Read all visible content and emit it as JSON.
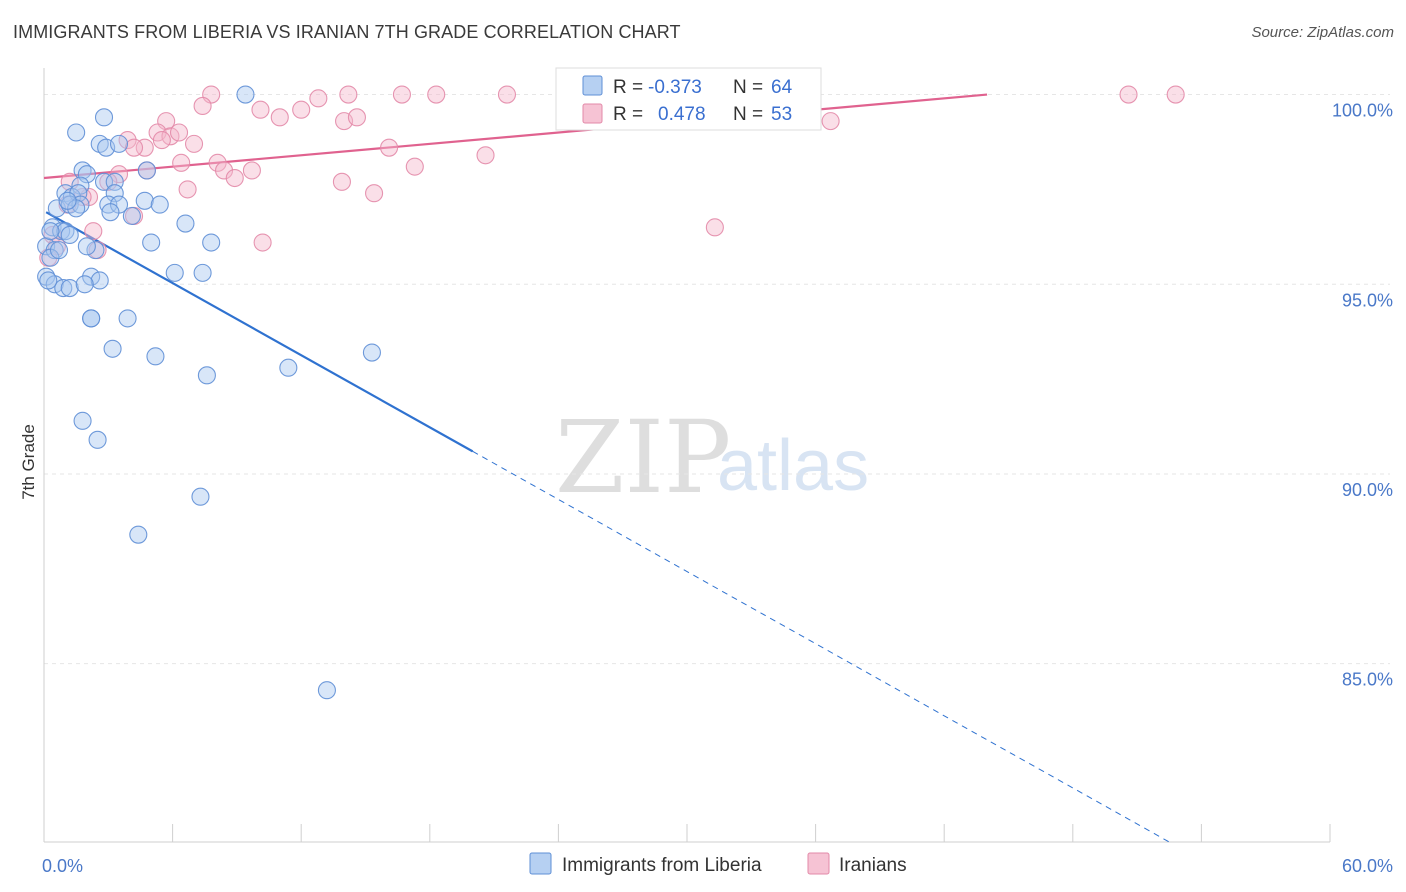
{
  "title": "IMMIGRANTS FROM LIBERIA VS IRANIAN 7TH GRADE CORRELATION CHART",
  "source": "Source: ZipAtlas.com",
  "watermark": {
    "zip": "ZIP",
    "atlas": "atlas"
  },
  "colors": {
    "blue_fill": "#a9c8f0",
    "blue_stroke": "#5f8fd6",
    "blue_line": "#2f72d0",
    "pink_fill": "#f5b9cc",
    "pink_stroke": "#e389a8",
    "pink_line": "#e0628f",
    "grid": "#e6e6e6",
    "tick_text": "#4a78c8"
  },
  "legend": {
    "r_label": "R =",
    "n_label": "N =",
    "series": [
      {
        "r": "-0.373",
        "n": "64"
      },
      {
        "r": "0.478",
        "n": "53"
      }
    ]
  },
  "chart_data": {
    "type": "scatter",
    "xlabel": "",
    "ylabel": "7th Grade",
    "xlim": [
      0,
      60
    ],
    "ylim": [
      80.3,
      100.7
    ],
    "x_tick_labels": [
      {
        "value": 0,
        "label": "0.0%"
      },
      {
        "value": 60,
        "label": "60.0%"
      }
    ],
    "x_minor_ticks": [
      0,
      6,
      12,
      18,
      24,
      30,
      36,
      42,
      48,
      54,
      60
    ],
    "y_ticks": [
      {
        "value": 100,
        "label": "100.0%"
      },
      {
        "value": 95,
        "label": "95.0%"
      },
      {
        "value": 90,
        "label": "90.0%"
      },
      {
        "value": 85,
        "label": "85.0%"
      }
    ],
    "series": [
      {
        "name": "Immigrants from Liberia",
        "r": -0.373,
        "n": 64,
        "trend": {
          "x0": 0.1,
          "y0": 96.9,
          "x_solid_end": 20.0,
          "x1": 52.5,
          "y1": 80.3
        },
        "points": [
          [
            9.4,
            100.0
          ],
          [
            2.8,
            99.4
          ],
          [
            1.5,
            99.0
          ],
          [
            2.6,
            98.7
          ],
          [
            2.9,
            98.6
          ],
          [
            3.5,
            98.7
          ],
          [
            1.8,
            98.0
          ],
          [
            2.0,
            97.9
          ],
          [
            4.8,
            98.0
          ],
          [
            1.7,
            97.6
          ],
          [
            2.8,
            97.7
          ],
          [
            3.3,
            97.7
          ],
          [
            1.0,
            97.4
          ],
          [
            1.3,
            97.3
          ],
          [
            1.6,
            97.4
          ],
          [
            3.3,
            97.4
          ],
          [
            0.6,
            97.0
          ],
          [
            1.2,
            97.1
          ],
          [
            1.7,
            97.1
          ],
          [
            3.0,
            97.1
          ],
          [
            3.5,
            97.1
          ],
          [
            4.7,
            97.2
          ],
          [
            5.4,
            97.1
          ],
          [
            3.1,
            96.9
          ],
          [
            4.1,
            96.8
          ],
          [
            0.4,
            96.5
          ],
          [
            0.8,
            96.4
          ],
          [
            1.0,
            96.4
          ],
          [
            1.2,
            96.3
          ],
          [
            6.6,
            96.6
          ],
          [
            0.1,
            96.0
          ],
          [
            0.5,
            95.9
          ],
          [
            2.4,
            95.9
          ],
          [
            5.0,
            96.1
          ],
          [
            7.8,
            96.1
          ],
          [
            0.3,
            95.7
          ],
          [
            0.1,
            95.2
          ],
          [
            0.5,
            95.0
          ],
          [
            0.9,
            94.9
          ],
          [
            1.2,
            94.9
          ],
          [
            2.2,
            95.2
          ],
          [
            2.6,
            95.1
          ],
          [
            1.9,
            95.0
          ],
          [
            6.1,
            95.3
          ],
          [
            7.4,
            95.3
          ],
          [
            2.2,
            94.1
          ],
          [
            2.2,
            94.1
          ],
          [
            3.9,
            94.1
          ],
          [
            3.2,
            93.3
          ],
          [
            5.2,
            93.1
          ],
          [
            7.6,
            92.6
          ],
          [
            11.4,
            92.8
          ],
          [
            15.3,
            93.2
          ],
          [
            1.8,
            91.4
          ],
          [
            2.5,
            90.9
          ],
          [
            7.3,
            89.4
          ],
          [
            4.4,
            88.4
          ],
          [
            13.2,
            84.3
          ],
          [
            0.3,
            96.4
          ],
          [
            0.7,
            95.9
          ],
          [
            2.0,
            96.0
          ],
          [
            1.5,
            97.0
          ],
          [
            0.2,
            95.1
          ],
          [
            1.1,
            97.2
          ]
        ]
      },
      {
        "name": "Iranians",
        "r": 0.478,
        "n": 53,
        "trend": {
          "x0": 0,
          "y0": 97.8,
          "x1": 44,
          "y1": 100.0
        },
        "points": [
          [
            7.8,
            100.0
          ],
          [
            7.4,
            99.7
          ],
          [
            12.0,
            99.6
          ],
          [
            12.8,
            99.9
          ],
          [
            14.2,
            100.0
          ],
          [
            16.7,
            100.0
          ],
          [
            18.3,
            100.0
          ],
          [
            21.6,
            100.0
          ],
          [
            35.7,
            100.0
          ],
          [
            50.6,
            100.0
          ],
          [
            52.8,
            100.0
          ],
          [
            10.1,
            99.6
          ],
          [
            11.0,
            99.4
          ],
          [
            14.0,
            99.3
          ],
          [
            14.6,
            99.4
          ],
          [
            5.7,
            99.3
          ],
          [
            5.3,
            99.0
          ],
          [
            5.9,
            98.9
          ],
          [
            5.5,
            98.8
          ],
          [
            3.9,
            98.8
          ],
          [
            4.7,
            98.6
          ],
          [
            4.2,
            98.6
          ],
          [
            7.0,
            98.7
          ],
          [
            8.1,
            98.2
          ],
          [
            16.1,
            98.6
          ],
          [
            6.4,
            98.2
          ],
          [
            8.4,
            98.0
          ],
          [
            9.7,
            98.0
          ],
          [
            4.8,
            98.0
          ],
          [
            3.5,
            97.9
          ],
          [
            3.0,
            97.7
          ],
          [
            8.9,
            97.8
          ],
          [
            13.9,
            97.7
          ],
          [
            17.3,
            98.1
          ],
          [
            20.6,
            98.4
          ],
          [
            1.2,
            97.7
          ],
          [
            6.7,
            97.5
          ],
          [
            2.1,
            97.3
          ],
          [
            15.4,
            97.4
          ],
          [
            1.1,
            97.1
          ],
          [
            4.2,
            96.8
          ],
          [
            31.3,
            96.5
          ],
          [
            2.3,
            96.4
          ],
          [
            10.2,
            96.1
          ],
          [
            0.4,
            96.3
          ],
          [
            2.5,
            95.9
          ],
          [
            0.6,
            96.0
          ],
          [
            0.2,
            95.7
          ],
          [
            26.3,
            99.3
          ],
          [
            36.7,
            99.3
          ],
          [
            27.0,
            99.5
          ],
          [
            1.8,
            97.3
          ],
          [
            6.3,
            99.0
          ]
        ]
      }
    ]
  }
}
